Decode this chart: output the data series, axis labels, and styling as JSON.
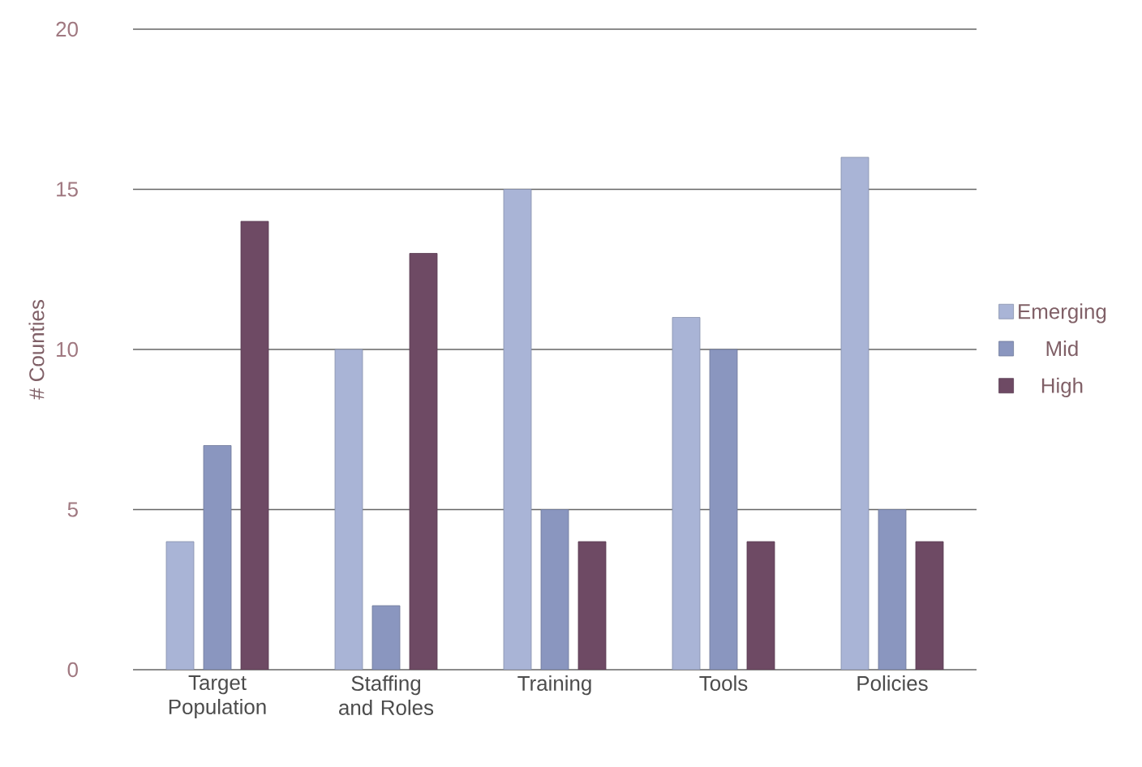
{
  "chart_data": {
    "type": "bar",
    "ylabel": "# Counties",
    "categories": [
      "Target Population",
      "Staffing and Roles",
      "Training",
      "Tools",
      "Policies"
    ],
    "series": [
      {
        "name": "Emerging",
        "color": "#a9b4d6",
        "values": [
          4,
          10,
          15,
          11,
          16
        ]
      },
      {
        "name": "Mid",
        "color": "#8a96bf",
        "values": [
          7,
          2,
          5,
          10,
          5
        ]
      },
      {
        "name": "High",
        "color": "#6e4a64",
        "values": [
          14,
          13,
          4,
          4,
          4
        ]
      }
    ],
    "ylim": [
      0,
      20
    ],
    "yticks": [
      0,
      5,
      10,
      15,
      20
    ],
    "grid": "y",
    "legend": "right"
  }
}
